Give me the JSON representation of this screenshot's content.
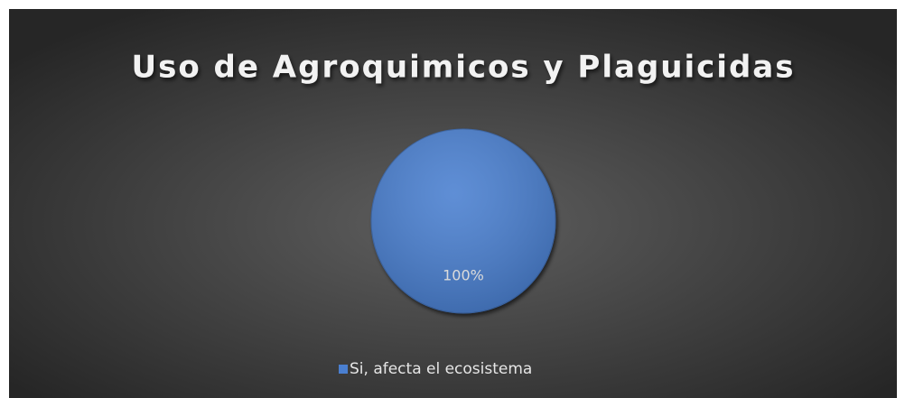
{
  "chart_data": {
    "type": "pie",
    "title": "Uso de Agroquimicos y Plaguicidas",
    "categories": [
      "Si, afecta el ecosistema"
    ],
    "values": [
      100
    ],
    "value_labels": [
      "100%"
    ],
    "colors": [
      "#4a7fd0"
    ],
    "legend": "bottom"
  }
}
